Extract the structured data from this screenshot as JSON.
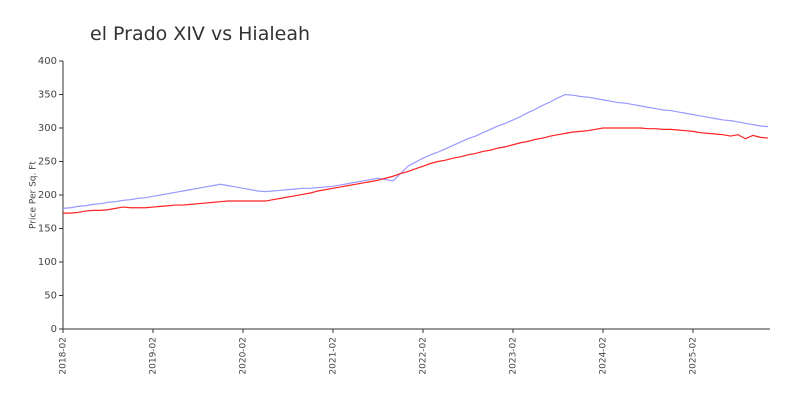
{
  "chart_data": {
    "type": "line",
    "title": "el Prado XIV vs Hialeah",
    "y_label": "Price Per Sq. Ft",
    "x": [
      "2018-02",
      "2018-03",
      "2018-04",
      "2018-05",
      "2018-06",
      "2018-07",
      "2018-08",
      "2018-09",
      "2018-10",
      "2018-11",
      "2018-12",
      "2019-01",
      "2019-02",
      "2019-03",
      "2019-04",
      "2019-05",
      "2019-06",
      "2019-07",
      "2019-08",
      "2019-09",
      "2019-10",
      "2019-11",
      "2019-12",
      "2020-01",
      "2020-02",
      "2020-03",
      "2020-04",
      "2020-05",
      "2020-06",
      "2020-07",
      "2020-08",
      "2020-09",
      "2020-10",
      "2020-11",
      "2020-12",
      "2021-01",
      "2021-02",
      "2021-03",
      "2021-04",
      "2021-05",
      "2021-06",
      "2021-07",
      "2021-08",
      "2021-09",
      "2021-10",
      "2021-11",
      "2021-12",
      "2022-01",
      "2022-02",
      "2022-03",
      "2022-04",
      "2022-05",
      "2022-06",
      "2022-07",
      "2022-08",
      "2022-09",
      "2022-10",
      "2022-11",
      "2022-12",
      "2023-01",
      "2023-02",
      "2023-03",
      "2023-04",
      "2023-05",
      "2023-06",
      "2023-07",
      "2023-08",
      "2023-09",
      "2023-10",
      "2023-11",
      "2023-12",
      "2024-01",
      "2024-02",
      "2024-03",
      "2024-04",
      "2024-05",
      "2024-06",
      "2024-07",
      "2024-08",
      "2024-09",
      "2024-10",
      "2024-11",
      "2024-12",
      "2025-01",
      "2025-02",
      "2025-03",
      "2025-04",
      "2025-05",
      "2025-06",
      "2025-07",
      "2025-08",
      "2025-09",
      "2025-10",
      "2025-11",
      "2025-12"
    ],
    "series": [
      {
        "color": "#9999ff",
        "values": [
          180,
          181,
          183,
          184,
          186,
          187,
          189,
          190,
          192,
          193,
          195,
          196,
          198,
          200,
          202,
          204,
          206,
          208,
          210,
          212,
          214,
          216,
          214,
          212,
          210,
          208,
          206,
          205,
          206,
          207,
          208,
          209,
          210,
          210,
          211,
          212,
          213,
          215,
          217,
          219,
          221,
          223,
          225,
          223,
          221,
          232,
          243,
          249,
          255,
          260,
          264,
          269,
          274,
          279,
          284,
          288,
          293,
          298,
          303,
          307,
          312,
          317,
          323,
          328,
          334,
          339,
          345,
          350,
          349,
          347,
          346,
          344,
          342,
          340,
          338,
          337,
          335,
          333,
          331,
          329,
          327,
          326,
          324,
          322,
          320,
          318,
          316,
          314,
          312,
          311,
          309,
          307,
          305,
          303,
          302
        ]
      },
      {
        "color": "#ff2222",
        "values": [
          173,
          173,
          174,
          176,
          177,
          177,
          178,
          180,
          182,
          181,
          181,
          181,
          182,
          183,
          184,
          185,
          185,
          186,
          187,
          188,
          189,
          190,
          191,
          191,
          191,
          191,
          191,
          191,
          193,
          195,
          197,
          199,
          201,
          203,
          206,
          208,
          210,
          212,
          214,
          216,
          218,
          220,
          222,
          225,
          228,
          232,
          235,
          239,
          243,
          247,
          250,
          252,
          255,
          257,
          260,
          262,
          265,
          267,
          270,
          272,
          275,
          278,
          280,
          283,
          285,
          288,
          290,
          292,
          294,
          295,
          296,
          298,
          300,
          300,
          300,
          300,
          300,
          300,
          299,
          299,
          298,
          298,
          297,
          296,
          295,
          293,
          292,
          291,
          290,
          288,
          290,
          284,
          289,
          286,
          285
        ]
      }
    ],
    "ylim": [
      0,
      400
    ],
    "yticks": [
      0,
      50,
      100,
      150,
      200,
      250,
      300,
      350,
      400
    ],
    "grid": false
  }
}
